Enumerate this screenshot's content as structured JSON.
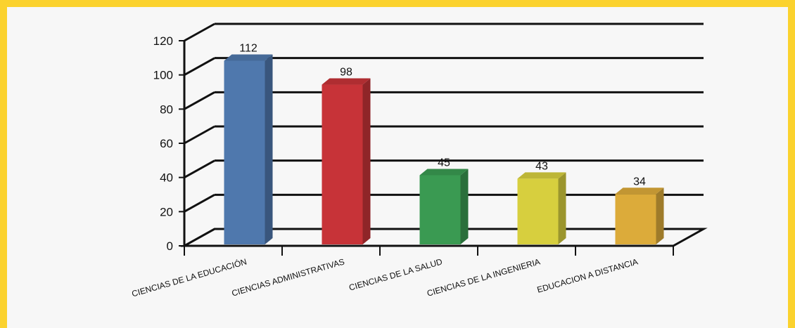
{
  "chart_data": {
    "type": "bar",
    "categories": [
      "CIENCIAS DE LA EDUCACIÓN",
      "CIENCIAS ADMINISTRATIVAS",
      "CIENCIAS DE LA SALUD",
      "CIENCIAS DE LA INGENIERIA",
      "EDUCACION A DISTANCIA"
    ],
    "values": [
      112,
      98,
      45,
      43,
      34
    ],
    "colors": [
      "#4f78ad",
      "#c73338",
      "#3a9a52",
      "#d7cf3e",
      "#dcab3a"
    ],
    "yticks": [
      0,
      20,
      40,
      60,
      80,
      100,
      120
    ],
    "ylim": [
      0,
      120
    ],
    "grid": true,
    "legend": "none",
    "style": "3d-column"
  },
  "page": {
    "border_color": "#fbd22e",
    "background_color": "#f7f7f7"
  }
}
